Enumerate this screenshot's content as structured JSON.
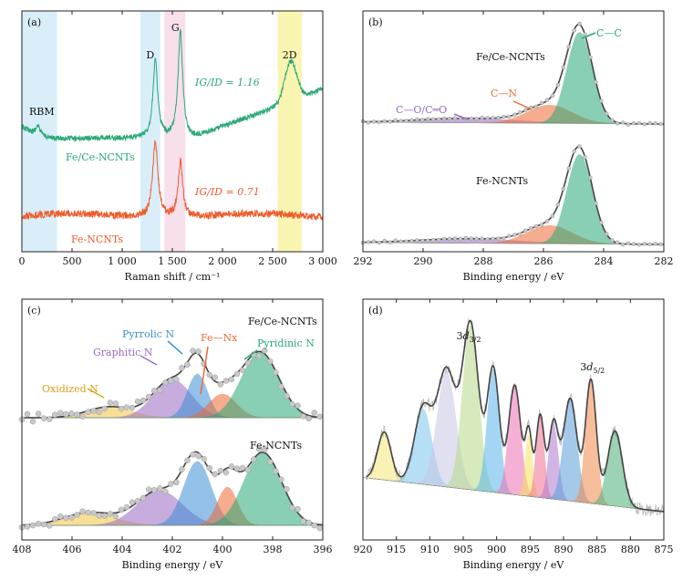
{
  "panels": [
    {
      "id": "a",
      "letter": "(a)",
      "xlabel": "Raman shift / cm⁻¹",
      "xlim": [
        0,
        3000
      ],
      "ticks": [
        0,
        500,
        1000,
        1500,
        2000,
        2500,
        3000
      ],
      "tick_labels": [
        "0",
        "500",
        "1 000",
        "1 500",
        "2 000",
        "2 500",
        "3 000"
      ],
      "bands": [
        {
          "label": "RBM",
          "from": 0,
          "to": 350,
          "color": "#d6ecfa"
        },
        {
          "label": "D",
          "from": 1180,
          "to": 1380,
          "color": "#d6ecfa"
        },
        {
          "label": "G",
          "from": 1420,
          "to": 1630,
          "color": "#f6dcea"
        },
        {
          "label": "2D",
          "from": 2550,
          "to": 2790,
          "color": "#f9f3a8"
        }
      ],
      "samples": [
        {
          "name": "Fe/Ce-NCNTs",
          "ratio_label": "IG/ID = 1.16",
          "color": "#2aa876"
        },
        {
          "name": "Fe-NCNTs",
          "ratio_label": "IG/ID = 0.71",
          "color": "#ef5a2a"
        }
      ]
    },
    {
      "id": "b",
      "letter": "(b)",
      "xlabel": "Binding energy / eV",
      "xlim": [
        292,
        282
      ],
      "ticks": [
        292,
        290,
        288,
        286,
        284,
        282
      ],
      "tick_labels": [
        "292",
        "290",
        "288",
        "286",
        "284",
        "282"
      ],
      "samples": [
        "Fe/Ce-NCNTs",
        "Fe-NCNTs"
      ],
      "components": [
        {
          "label": "C—C",
          "center_eV": 284.8,
          "color": "#2aa876"
        },
        {
          "label": "C—N",
          "center_eV": 285.8,
          "color": "#ef6a35"
        },
        {
          "label": "C—O/C═O",
          "center_eV": 288.5,
          "color": "#9b6ac4"
        }
      ]
    },
    {
      "id": "c",
      "letter": "(c)",
      "xlabel": "Binding energy / eV",
      "xlim": [
        408,
        396
      ],
      "ticks": [
        408,
        406,
        404,
        402,
        400,
        398,
        396
      ],
      "tick_labels": [
        "408",
        "406",
        "404",
        "402",
        "400",
        "398",
        "396"
      ],
      "samples": [
        "Fe/Ce-NCNTs",
        "Fe-NCNTs"
      ],
      "components": [
        {
          "label": "Oxidized N",
          "center_eV": 404.5,
          "color": "#f5c542"
        },
        {
          "label": "Graphitic N",
          "center_eV": 402.0,
          "color": "#9b6ac4"
        },
        {
          "label": "Pyrrolic N",
          "center_eV": 401.0,
          "color": "#3b8fd6"
        },
        {
          "label": "Fe—Nx",
          "center_eV": 400.0,
          "color": "#ef6a35"
        },
        {
          "label": "Pyridinic N",
          "center_eV": 398.5,
          "color": "#2aa876"
        }
      ]
    },
    {
      "id": "d",
      "letter": "(d)",
      "xlabel": "Binding energy / eV",
      "xlim": [
        920,
        875
      ],
      "ticks": [
        920,
        915,
        910,
        905,
        900,
        895,
        890,
        885,
        880,
        875
      ],
      "tick_labels": [
        "920",
        "915",
        "910",
        "905",
        "900",
        "895",
        "890",
        "885",
        "880",
        "875"
      ],
      "peak_labels": [
        "3d3/2",
        "3d5/2"
      ]
    }
  ]
}
